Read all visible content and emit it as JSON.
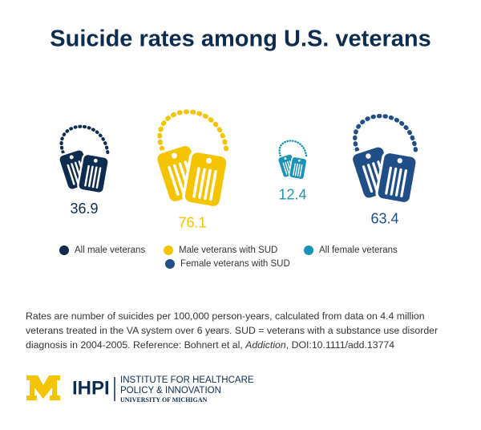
{
  "chart_data": {
    "type": "pictogram",
    "title": "Suicide rates among U.S. veterans",
    "series": [
      {
        "name": "All male veterans",
        "color": "#0e2b50",
        "values": [
          36.9
        ]
      },
      {
        "name": "Male veterans with SUD",
        "color": "#f5c400",
        "values": [
          76.1
        ]
      },
      {
        "name": "All female veterans",
        "color": "#1b93b9",
        "values": [
          12.4
        ]
      },
      {
        "name": "Female veterans with SUD",
        "color": "#1f4f86",
        "values": [
          63.4
        ]
      }
    ]
  },
  "footnote": {
    "before": "Rates are number of suicides per 100,000 person-years, calculated from data on 4.4 million veterans treated in the VA system over 6 years. SUD = veterans with a substance use disorder diagnosis in 2004-2005. Reference: Bohnert et al, ",
    "journal": "Addiction",
    "after": ", DOI:10.1111/add.13774"
  },
  "logo": {
    "acronym": "IHPI",
    "line1": "INSTITUTE FOR HEALTHCARE",
    "line2": "POLICY & INNOVATION",
    "line3": "UNIVERSITY OF MICHIGAN"
  }
}
